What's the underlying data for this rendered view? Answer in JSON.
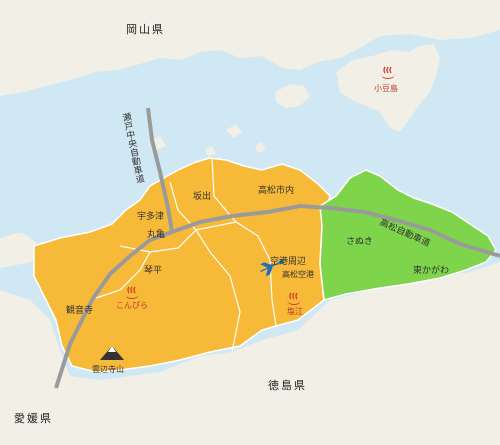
{
  "prefectures": {
    "okayama": "岡山県",
    "tokushima": "徳島県",
    "ehime": "愛媛県"
  },
  "areas": {
    "sakaide": "坂出",
    "takamatsu": "高松市内",
    "utazu": "宇多津",
    "marugame": "丸亀",
    "kotohira": "琴平",
    "kanonji": "観音寺",
    "airport_area": "空港周辺",
    "sanuki": "さぬき",
    "higashikagawa": "東かがわ"
  },
  "spots": {
    "shodoshima": "小豆島",
    "konpira": "こんぴら",
    "shioe": "塩江",
    "unpenji": "雲辺寺山",
    "airport": "高松空港"
  },
  "roads": {
    "setochuo": "瀬戸中央自動車道",
    "takamatsu_exp": "高松自動車道"
  },
  "icons": [
    "onsen-icon",
    "airplane-icon",
    "mountain-icon"
  ],
  "colors": {
    "sea": "#cfe8f3",
    "land": "#f1efe6",
    "west_kagawa": "#f7b938",
    "east_kagawa": "#7ed44a",
    "road": "#9a9a9a",
    "onsen_red": "#d23b2a"
  }
}
